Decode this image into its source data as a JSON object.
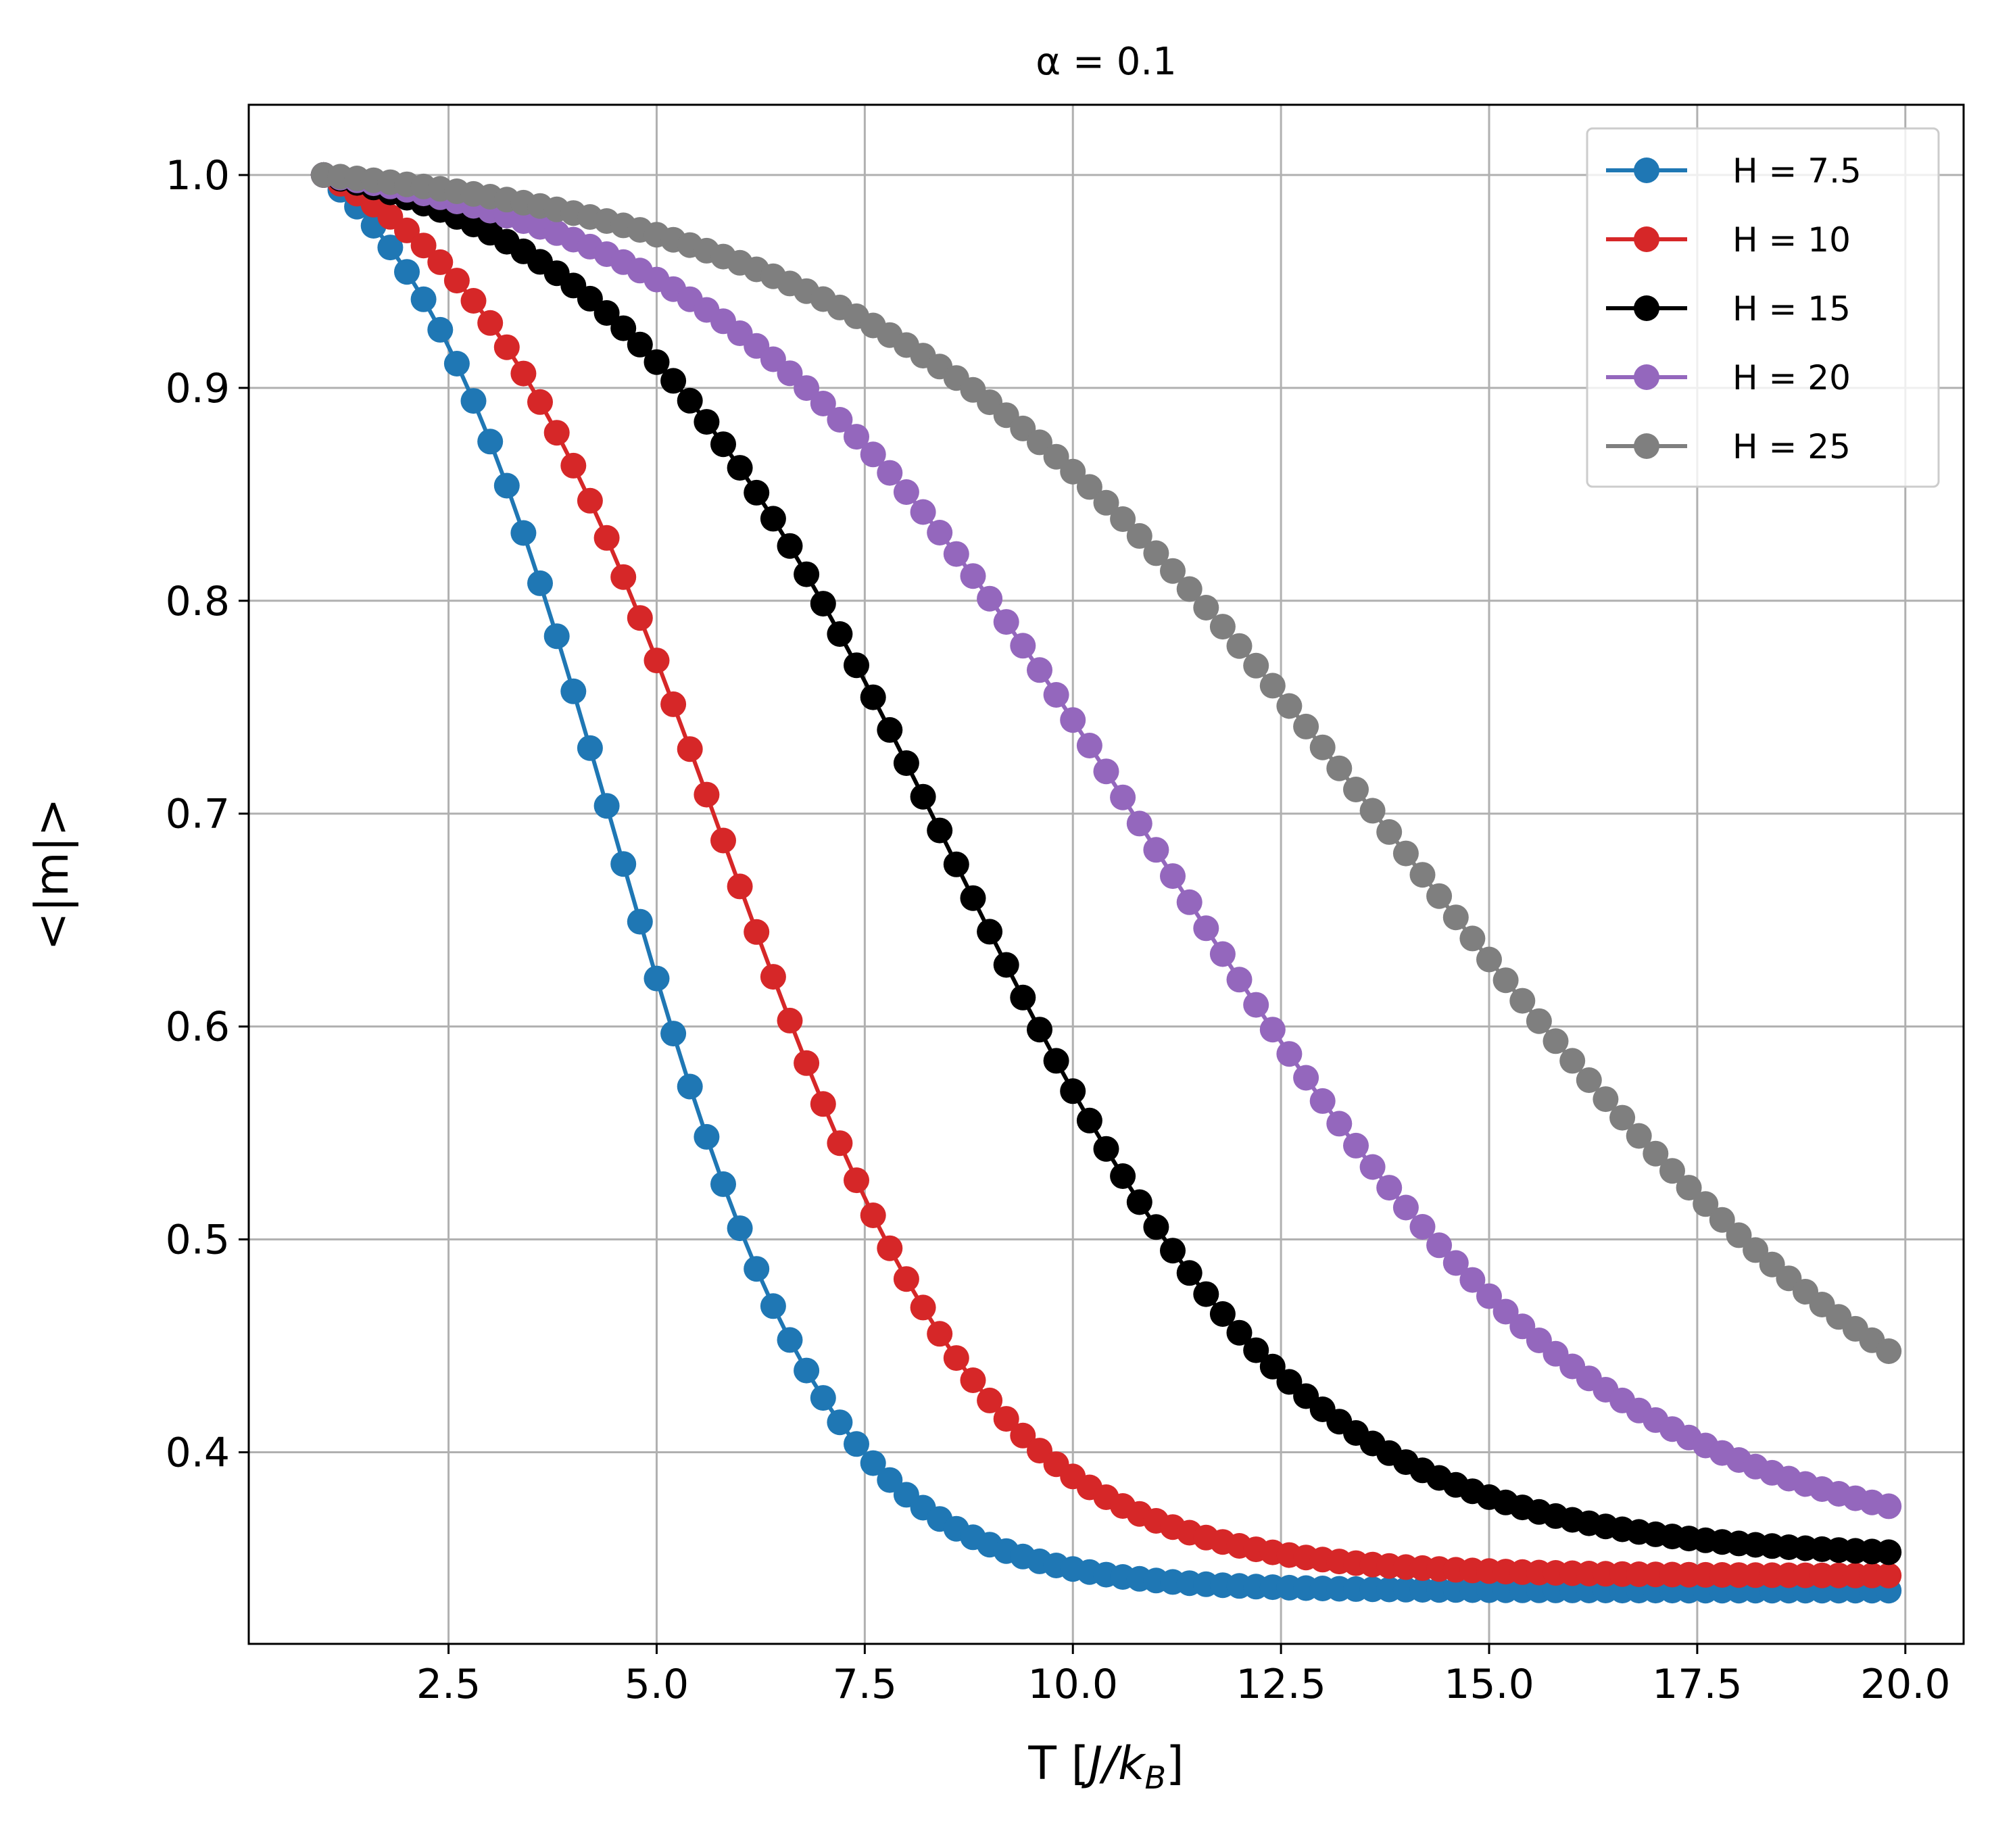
{
  "chart_data": {
    "type": "line",
    "title": "α = 0.1",
    "xlabel": {
      "prefix": "T [",
      "J": "J",
      "slash": "/",
      "k": "k",
      "sub": "B",
      "suffix": "]"
    },
    "ylabel": "<|m|>",
    "xlim": [
      0.1,
      20.7
    ],
    "ylim": [
      0.31,
      1.033
    ],
    "xticks": [
      2.5,
      5.0,
      7.5,
      10.0,
      12.5,
      15.0,
      17.5,
      20.0
    ],
    "xtick_labels": [
      "2.5",
      "5.0",
      "7.5",
      "10.0",
      "12.5",
      "15.0",
      "17.5",
      "20.0"
    ],
    "yticks": [
      0.4,
      0.5,
      0.6,
      0.7,
      0.8,
      0.9,
      1.0
    ],
    "ytick_labels": [
      "0.4",
      "0.5",
      "0.6",
      "0.7",
      "0.8",
      "0.9",
      "1.0"
    ],
    "grid": true,
    "legend_position": "top-right",
    "x_range": {
      "start": 1.0,
      "end": 19.8,
      "step": 0.2
    },
    "series": [
      {
        "name": "H = 7.5",
        "color": "#1f77b4",
        "curve": {
          "low": 0.335,
          "T0": 4.5,
          "w": 1.3
        }
      },
      {
        "name": "H = 10",
        "color": "#d62728",
        "curve": {
          "low": 0.342,
          "T0": 5.8,
          "w": 1.6
        }
      },
      {
        "name": "H = 15",
        "color": "#000000",
        "curve": {
          "low": 0.35,
          "T0": 8.5,
          "w": 2.1
        }
      },
      {
        "name": "H = 20",
        "color": "#9467bd",
        "curve": {
          "low": 0.35,
          "T0": 11.0,
          "w": 2.7
        }
      },
      {
        "name": "H = 25",
        "color": "#7f7f7f",
        "curve": {
          "low": 0.35,
          "T0": 14.0,
          "w": 3.3
        }
      }
    ]
  }
}
